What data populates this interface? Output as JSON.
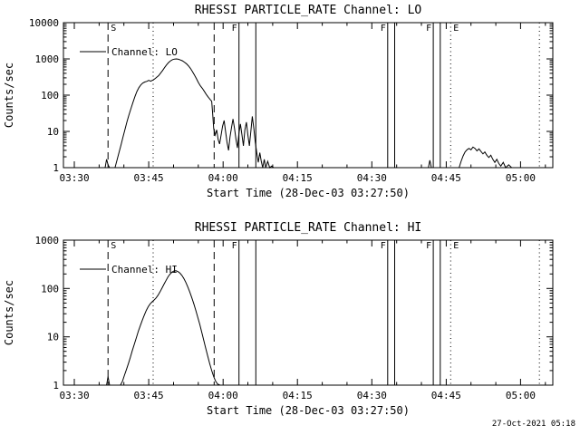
{
  "footer": {
    "timestamp": "27-Oct-2021 05:18"
  },
  "chart_data": [
    {
      "type": "line",
      "title": "RHESSI PARTICLE_RATE Channel: LO",
      "xlabel": "Start Time (28-Dec-03 03:27:50)",
      "ylabel": "Counts/sec",
      "legend": "Channel: LO",
      "yscale": "log",
      "grid": false,
      "x_unit": "minutes_after_03:00",
      "xlim": [
        27.8,
        126.5
      ],
      "ylim": [
        1,
        10000
      ],
      "xticks": [
        {
          "x": 30,
          "label": "03:30"
        },
        {
          "x": 45,
          "label": "03:45"
        },
        {
          "x": 60,
          "label": "04:00"
        },
        {
          "x": 75,
          "label": "04:15"
        },
        {
          "x": 90,
          "label": "04:30"
        },
        {
          "x": 105,
          "label": "04:45"
        },
        {
          "x": 120,
          "label": "05:00"
        }
      ],
      "yticks": [
        {
          "v": 1,
          "label": "1"
        },
        {
          "v": 10,
          "label": "10"
        },
        {
          "v": 100,
          "label": "100"
        },
        {
          "v": 1000,
          "label": "1000"
        },
        {
          "v": 10000,
          "label": "10000"
        }
      ],
      "events": [
        {
          "x": 36.8,
          "style": "dashed",
          "label": "S"
        },
        {
          "x": 45.9,
          "style": "dotted",
          "label": ""
        },
        {
          "x": 58.2,
          "style": "dashed",
          "label": ""
        },
        {
          "x": 63.2,
          "style": "solid",
          "label": "F"
        },
        {
          "x": 66.6,
          "style": "solid",
          "label": ""
        },
        {
          "x": 93.2,
          "style": "solid",
          "label": "F"
        },
        {
          "x": 94.6,
          "style": "solid",
          "label": ""
        },
        {
          "x": 102.4,
          "style": "solid",
          "label": "F"
        },
        {
          "x": 103.8,
          "style": "solid",
          "label": ""
        },
        {
          "x": 105.9,
          "style": "dotted",
          "label": "E"
        },
        {
          "x": 123.8,
          "style": "dotted",
          "label": ""
        }
      ],
      "series": [
        {
          "name": "Channel: LO",
          "segments": [
            [
              [
                36.2,
                1
              ],
              [
                36.5,
                1.7
              ],
              [
                36.8,
                1.2
              ],
              [
                37.1,
                1
              ]
            ],
            [
              [
                38.2,
                1
              ],
              [
                38.6,
                1.6
              ],
              [
                39,
                2.6
              ],
              [
                39.4,
                4.2
              ],
              [
                39.8,
                7
              ],
              [
                40.2,
                11
              ],
              [
                40.6,
                18
              ],
              [
                41,
                28
              ],
              [
                41.4,
                42
              ],
              [
                41.8,
                62
              ],
              [
                42.2,
                90
              ],
              [
                42.6,
                125
              ],
              [
                43,
                160
              ],
              [
                43.4,
                190
              ],
              [
                43.8,
                215
              ],
              [
                44.2,
                230
              ],
              [
                44.6,
                240
              ],
              [
                45,
                255
              ],
              [
                45.4,
                242
              ],
              [
                45.8,
                258
              ],
              [
                46.2,
                280
              ],
              [
                46.6,
                312
              ],
              [
                47,
                345
              ],
              [
                47.4,
                405
              ],
              [
                47.8,
                480
              ],
              [
                48.2,
                575
              ],
              [
                48.6,
                685
              ],
              [
                49,
                795
              ],
              [
                49.4,
                885
              ],
              [
                49.8,
                955
              ],
              [
                50.2,
                990
              ],
              [
                50.6,
                1000
              ],
              [
                51,
                975
              ],
              [
                51.4,
                935
              ],
              [
                51.8,
                885
              ],
              [
                52.2,
                815
              ],
              [
                52.6,
                735
              ],
              [
                53,
                645
              ],
              [
                53.4,
                550
              ],
              [
                53.8,
                455
              ],
              [
                54.2,
                365
              ],
              [
                54.6,
                290
              ],
              [
                55,
                225
              ],
              [
                55.4,
                182
              ],
              [
                55.8,
                155
              ],
              [
                56.2,
                128
              ],
              [
                56.6,
                105
              ],
              [
                57,
                88
              ],
              [
                57.4,
                76
              ],
              [
                57.7,
                68
              ],
              [
                57.9,
                30
              ],
              [
                58.1,
                12
              ],
              [
                58.4,
                8
              ],
              [
                58.7,
                11
              ],
              [
                59,
                6
              ],
              [
                59.3,
                4.5
              ],
              [
                59.6,
                8
              ],
              [
                59.9,
                14
              ],
              [
                60.2,
                20
              ],
              [
                60.5,
                10
              ],
              [
                60.8,
                5
              ],
              [
                61.1,
                3
              ],
              [
                61.4,
                7
              ],
              [
                61.7,
                13
              ],
              [
                62,
                22
              ],
              [
                62.3,
                12
              ],
              [
                62.6,
                6
              ],
              [
                62.9,
                3.5
              ],
              [
                63.2,
                9
              ],
              [
                63.5,
                16
              ],
              [
                63.8,
                8
              ],
              [
                64.1,
                4
              ],
              [
                64.4,
                11
              ],
              [
                64.7,
                18
              ],
              [
                65,
                8
              ],
              [
                65.3,
                4
              ],
              [
                65.6,
                10
              ],
              [
                65.9,
                26
              ],
              [
                66.2,
                12
              ],
              [
                66.5,
                5
              ],
              [
                66.8,
                2.5
              ],
              [
                67.1,
                1.4
              ],
              [
                67.4,
                2.6
              ],
              [
                67.7,
                1.5
              ],
              [
                68,
                1
              ],
              [
                68.3,
                1.7
              ],
              [
                68.6,
                1
              ],
              [
                69,
                1.5
              ],
              [
                69.4,
                1
              ],
              [
                69.8,
                1.1
              ],
              [
                70.2,
                1
              ]
            ],
            [
              [
                101.4,
                1
              ],
              [
                101.7,
                1.6
              ],
              [
                102,
                1
              ]
            ],
            [
              [
                107.6,
                1
              ],
              [
                108,
                1.5
              ],
              [
                108.4,
                2.1
              ],
              [
                108.8,
                2.7
              ],
              [
                109.2,
                3.1
              ],
              [
                109.6,
                3.4
              ],
              [
                110,
                3.1
              ],
              [
                110.4,
                3.7
              ],
              [
                110.8,
                3.4
              ],
              [
                111.2,
                2.9
              ],
              [
                111.6,
                3.3
              ],
              [
                112,
                2.8
              ],
              [
                112.4,
                2.4
              ],
              [
                112.8,
                2.7
              ],
              [
                113.2,
                2.2
              ],
              [
                113.6,
                1.9
              ],
              [
                114,
                2.2
              ],
              [
                114.4,
                1.7
              ],
              [
                114.8,
                1.4
              ],
              [
                115.2,
                1.7
              ],
              [
                115.6,
                1.3
              ],
              [
                116,
                1.1
              ],
              [
                116.5,
                1.4
              ],
              [
                117,
                1
              ],
              [
                117.6,
                1.2
              ],
              [
                118.2,
                1
              ]
            ]
          ]
        }
      ]
    },
    {
      "type": "line",
      "title": "RHESSI PARTICLE_RATE Channel: HI",
      "xlabel": "Start Time (28-Dec-03 03:27:50)",
      "ylabel": "Counts/sec",
      "legend": "Channel: HI",
      "yscale": "log",
      "grid": false,
      "x_unit": "minutes_after_03:00",
      "xlim": [
        27.8,
        126.5
      ],
      "ylim": [
        1,
        1000
      ],
      "xticks": [
        {
          "x": 30,
          "label": "03:30"
        },
        {
          "x": 45,
          "label": "03:45"
        },
        {
          "x": 60,
          "label": "04:00"
        },
        {
          "x": 75,
          "label": "04:15"
        },
        {
          "x": 90,
          "label": "04:30"
        },
        {
          "x": 105,
          "label": "04:45"
        },
        {
          "x": 120,
          "label": "05:00"
        }
      ],
      "yticks": [
        {
          "v": 1,
          "label": "1"
        },
        {
          "v": 10,
          "label": "10"
        },
        {
          "v": 100,
          "label": "100"
        },
        {
          "v": 1000,
          "label": "1000"
        }
      ],
      "events": [
        {
          "x": 36.8,
          "style": "dashed",
          "label": "S"
        },
        {
          "x": 45.9,
          "style": "dotted",
          "label": ""
        },
        {
          "x": 58.2,
          "style": "dashed",
          "label": ""
        },
        {
          "x": 63.2,
          "style": "solid",
          "label": "F"
        },
        {
          "x": 66.6,
          "style": "solid",
          "label": ""
        },
        {
          "x": 93.2,
          "style": "solid",
          "label": "F"
        },
        {
          "x": 94.6,
          "style": "solid",
          "label": ""
        },
        {
          "x": 102.4,
          "style": "solid",
          "label": "F"
        },
        {
          "x": 103.8,
          "style": "solid",
          "label": ""
        },
        {
          "x": 105.9,
          "style": "dotted",
          "label": "E"
        },
        {
          "x": 123.8,
          "style": "dotted",
          "label": ""
        }
      ],
      "series": [
        {
          "name": "Channel: HI",
          "segments": [
            [
              [
                36.5,
                1
              ],
              [
                36.8,
                1.5
              ],
              [
                37.1,
                1
              ]
            ],
            [
              [
                39.3,
                1
              ],
              [
                39.7,
                1.2
              ],
              [
                40.1,
                1.6
              ],
              [
                40.5,
                2.1
              ],
              [
                40.9,
                2.8
              ],
              [
                41.3,
                3.8
              ],
              [
                41.7,
                5.2
              ],
              [
                42.1,
                7
              ],
              [
                42.5,
                9.5
              ],
              [
                42.9,
                13
              ],
              [
                43.3,
                17
              ],
              [
                43.7,
                22
              ],
              [
                44.1,
                28
              ],
              [
                44.5,
                35
              ],
              [
                44.9,
                42
              ],
              [
                45.3,
                48
              ],
              [
                45.7,
                53
              ],
              [
                46.1,
                58
              ],
              [
                46.5,
                64
              ],
              [
                46.9,
                73
              ],
              [
                47.3,
                86
              ],
              [
                47.7,
                103
              ],
              [
                48.1,
                124
              ],
              [
                48.5,
                148
              ],
              [
                48.9,
                174
              ],
              [
                49.3,
                198
              ],
              [
                49.7,
                218
              ],
              [
                50.1,
                230
              ],
              [
                50.5,
                232
              ],
              [
                50.9,
                224
              ],
              [
                51.3,
                208
              ],
              [
                51.7,
                186
              ],
              [
                52.1,
                160
              ],
              [
                52.5,
                133
              ],
              [
                52.9,
                107
              ],
              [
                53.3,
                84
              ],
              [
                53.7,
                64
              ],
              [
                54.1,
                48
              ],
              [
                54.5,
                35
              ],
              [
                54.9,
                25
              ],
              [
                55.3,
                18
              ],
              [
                55.7,
                12.5
              ],
              [
                56.1,
                8.5
              ],
              [
                56.5,
                5.8
              ],
              [
                56.9,
                4
              ],
              [
                57.3,
                2.8
              ],
              [
                57.7,
                2
              ],
              [
                58.1,
                1.5
              ],
              [
                58.5,
                1.2
              ],
              [
                58.9,
                1.05
              ],
              [
                59.4,
                1
              ],
              [
                60,
                1
              ]
            ]
          ]
        }
      ]
    }
  ]
}
